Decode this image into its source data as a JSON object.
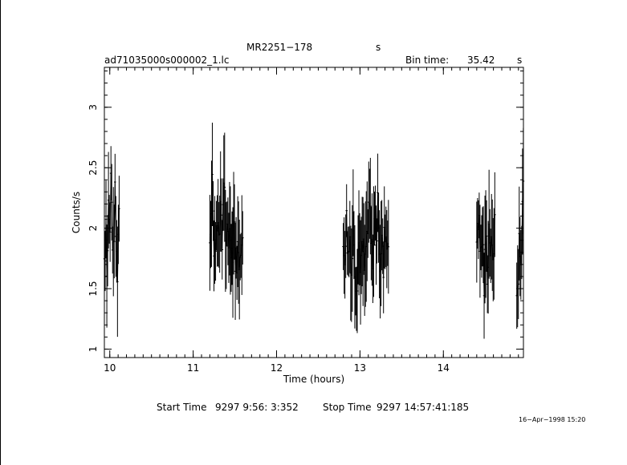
{
  "header": {
    "source": "MR2251−178",
    "source_unit": "s",
    "filename": "ad71035000s000002_1.lc",
    "bin_label": "Bin time:",
    "bin_value": "35.42",
    "bin_unit": "s"
  },
  "footer": {
    "start_label": "Start Time",
    "start_value": "9297  9:56: 3:352",
    "stop_label": "Stop Time",
    "stop_value": "9297 14:57:41:185",
    "date": "16−Apr−1998 15:20"
  },
  "chart_data": {
    "type": "scatter",
    "title": "MR2251−178",
    "xlabel": "Time (hours)",
    "ylabel": "Counts/s",
    "xlim": [
      9.935,
      14.96
    ],
    "ylim": [
      0.93,
      3.33
    ],
    "xticks": [
      10,
      11,
      12,
      13,
      14
    ],
    "yticks": [
      1,
      1.5,
      2,
      2.5,
      3
    ],
    "minor_x_step": 0.1,
    "minor_y_step": 0.1,
    "error_bars": true,
    "segments": [
      {
        "x_start": 9.935,
        "x_end": 10.12,
        "points": [
          [
            9.94,
            1.75
          ],
          [
            9.955,
            2.1
          ],
          [
            9.97,
            1.55
          ],
          [
            9.985,
            2.35
          ],
          [
            10.0,
            1.8
          ],
          [
            10.015,
            2.45
          ],
          [
            10.03,
            2.0
          ],
          [
            10.045,
            1.7
          ],
          [
            10.06,
            2.3
          ],
          [
            10.075,
            1.9
          ],
          [
            10.09,
            1.6
          ],
          [
            10.105,
            2.05
          ],
          [
            10.12,
            2.25
          ]
        ]
      },
      {
        "x_start": 11.2,
        "x_end": 11.6,
        "points": [
          [
            11.21,
            2.0
          ],
          [
            11.23,
            2.55
          ],
          [
            11.25,
            1.7
          ],
          [
            11.27,
            1.95
          ],
          [
            11.29,
            2.15
          ],
          [
            11.31,
            1.75
          ],
          [
            11.33,
            2.3
          ],
          [
            11.35,
            1.85
          ],
          [
            11.37,
            2.55
          ],
          [
            11.39,
            1.6
          ],
          [
            11.41,
            2.1
          ],
          [
            11.43,
            1.9
          ],
          [
            11.45,
            2.0
          ],
          [
            11.47,
            1.75
          ],
          [
            11.49,
            2.15
          ],
          [
            11.51,
            1.65
          ],
          [
            11.53,
            1.85
          ],
          [
            11.55,
            1.7
          ],
          [
            11.57,
            1.95
          ],
          [
            11.59,
            1.8
          ]
        ]
      },
      {
        "x_start": 12.8,
        "x_end": 13.35,
        "points": [
          [
            12.82,
            1.85
          ],
          [
            12.84,
            2.05
          ],
          [
            12.86,
            1.75
          ],
          [
            12.88,
            1.95
          ],
          [
            12.9,
            1.6
          ],
          [
            12.92,
            2.1
          ],
          [
            12.94,
            1.7
          ],
          [
            12.96,
            1.5
          ],
          [
            12.98,
            1.9
          ],
          [
            13.0,
            1.8
          ],
          [
            13.02,
            1.7
          ],
          [
            13.04,
            1.85
          ],
          [
            13.06,
            1.6
          ],
          [
            13.08,
            1.9
          ],
          [
            13.1,
            2.0
          ],
          [
            13.12,
            2.2
          ],
          [
            13.14,
            1.75
          ],
          [
            13.16,
            1.85
          ],
          [
            13.18,
            2.1
          ],
          [
            13.2,
            1.9
          ],
          [
            13.22,
            2.25
          ],
          [
            13.24,
            1.7
          ],
          [
            13.26,
            1.95
          ],
          [
            13.28,
            1.6
          ],
          [
            13.3,
            2.05
          ],
          [
            13.32,
            1.85
          ],
          [
            13.34,
            2.0
          ]
        ]
      },
      {
        "x_start": 14.4,
        "x_end": 14.62,
        "points": [
          [
            14.41,
            1.9
          ],
          [
            14.43,
            2.15
          ],
          [
            14.45,
            1.7
          ],
          [
            14.47,
            2.0
          ],
          [
            14.49,
            1.5
          ],
          [
            14.51,
            1.95
          ],
          [
            14.53,
            1.65
          ],
          [
            14.55,
            2.05
          ],
          [
            14.57,
            1.8
          ],
          [
            14.59,
            1.75
          ],
          [
            14.61,
            1.95
          ]
        ]
      },
      {
        "x_start": 14.88,
        "x_end": 14.96,
        "points": [
          [
            14.89,
            1.5
          ],
          [
            14.91,
            1.85
          ],
          [
            14.93,
            1.65
          ],
          [
            14.95,
            2.3
          ]
        ]
      }
    ]
  }
}
